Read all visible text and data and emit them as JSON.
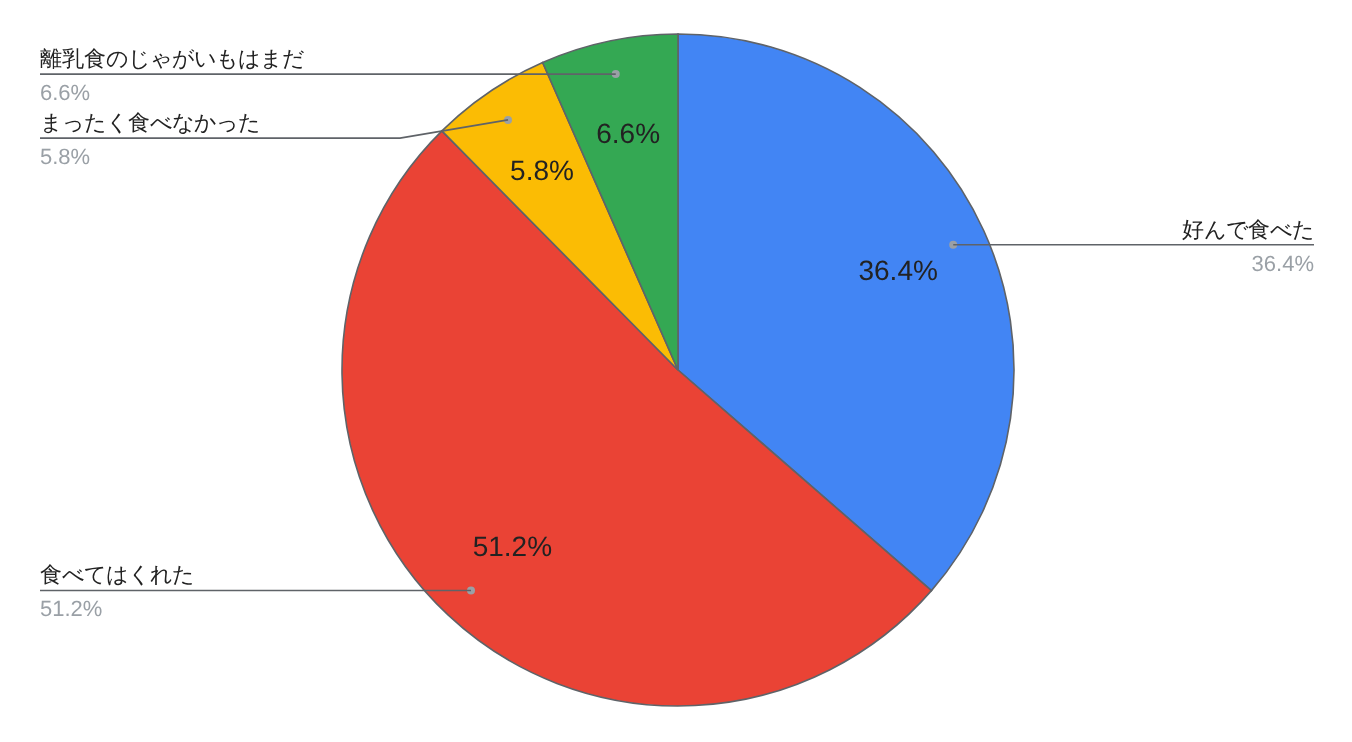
{
  "chart_data": {
    "type": "pie",
    "categories": [
      "好んで食べた",
      "食べてはくれた",
      "まったく食べなかった",
      "離乳食のじゃがいもはまだ"
    ],
    "values": [
      36.4,
      51.2,
      5.8,
      6.6
    ],
    "colors": [
      "#4285f4",
      "#ea4335",
      "#fbbc04",
      "#34a853"
    ],
    "value_labels": [
      "36.4%",
      "51.2%",
      "5.8%",
      "6.6%"
    ]
  }
}
